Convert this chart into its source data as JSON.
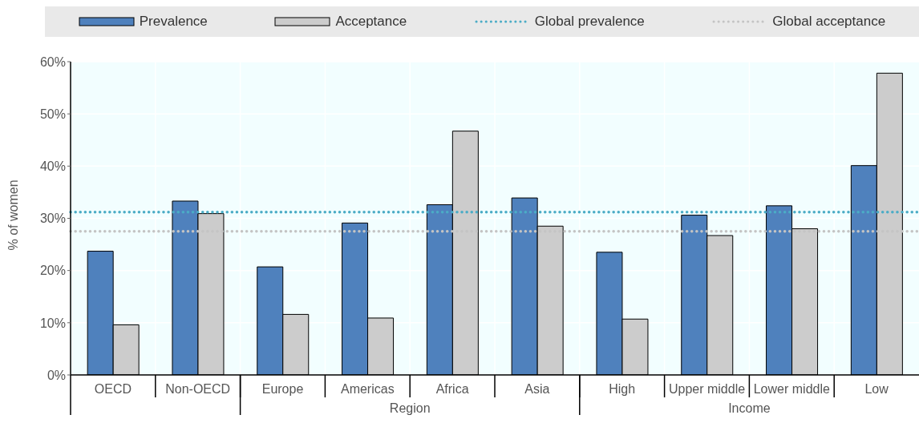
{
  "chart_data": {
    "type": "bar",
    "ylabel": "% of women",
    "categories": [
      "OECD",
      "Non-OECD",
      "Europe",
      "Americas",
      "Africa",
      "Asia",
      "High",
      "Upper middle",
      "Lower middle",
      "Low"
    ],
    "series": [
      {
        "name": "Prevalence",
        "color": "#4f81bd",
        "values": [
          23.7,
          33.3,
          20.7,
          29.1,
          32.6,
          33.9,
          23.5,
          30.6,
          32.4,
          40.1
        ]
      },
      {
        "name": "Acceptance",
        "color": "#cccccc",
        "values": [
          9.6,
          30.9,
          11.6,
          10.9,
          46.7,
          28.5,
          10.7,
          26.7,
          28.0,
          57.8
        ]
      }
    ],
    "ylim": [
      0,
      60
    ],
    "yticks": [
      {
        "value": 0,
        "label": "0%"
      },
      {
        "value": 10,
        "label": "10%"
      },
      {
        "value": 20,
        "label": "20%"
      },
      {
        "value": 30,
        "label": "30%"
      },
      {
        "value": 40,
        "label": "40%"
      },
      {
        "value": 50,
        "label": "50%"
      },
      {
        "value": 60,
        "label": "60%"
      }
    ],
    "ref_lines": [
      {
        "axis": "y",
        "value": 31.2,
        "label": "Global prevalence",
        "color": "#4bacc6",
        "line_style": "dotted"
      },
      {
        "axis": "y",
        "value": 27.5,
        "label": "Global acceptance",
        "color": "#c4c4c4",
        "line_style": "dotted"
      }
    ],
    "annotations": [
      "Region",
      "Income"
    ],
    "grid": true,
    "legend": "top"
  }
}
